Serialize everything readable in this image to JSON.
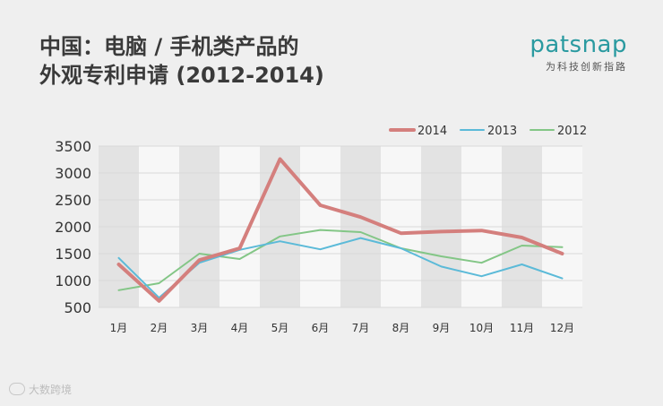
{
  "title": {
    "line1": "中国：电脑 / 手机类产品的",
    "line2": "外观专利申请 (2012-2014)"
  },
  "brand": {
    "name": "patsnap",
    "tagline": "为科技创新指路"
  },
  "watermark": "大数跨境",
  "colors": {
    "s2014": "#d47f7d",
    "s2013": "#5bbad8",
    "s2012": "#83c686",
    "grid": "#d9d9d9",
    "stripe": "#e3e3e3",
    "plot_bg": "#f7f7f7"
  },
  "chart_data": {
    "type": "line",
    "title": "中国：电脑 / 手机类产品的外观专利申请 (2012-2014)",
    "categories": [
      "1月",
      "2月",
      "3月",
      "4月",
      "5月",
      "6月",
      "7月",
      "8月",
      "9月",
      "10月",
      "11月",
      "12月"
    ],
    "ylim": [
      500,
      3500
    ],
    "yticks": [
      500,
      1000,
      1500,
      2000,
      2500,
      3000,
      3500
    ],
    "grid": true,
    "legend": "top-right",
    "series": [
      {
        "name": "2014",
        "values": [
          1300,
          620,
          1380,
          1600,
          3260,
          2400,
          2180,
          1880,
          1910,
          1930,
          1800,
          1500
        ]
      },
      {
        "name": "2013",
        "values": [
          1420,
          680,
          1330,
          1570,
          1730,
          1580,
          1790,
          1600,
          1260,
          1080,
          1300,
          1040
        ]
      },
      {
        "name": "2012",
        "values": [
          820,
          950,
          1500,
          1400,
          1820,
          1940,
          1900,
          1600,
          1450,
          1330,
          1650,
          1620
        ]
      }
    ]
  }
}
